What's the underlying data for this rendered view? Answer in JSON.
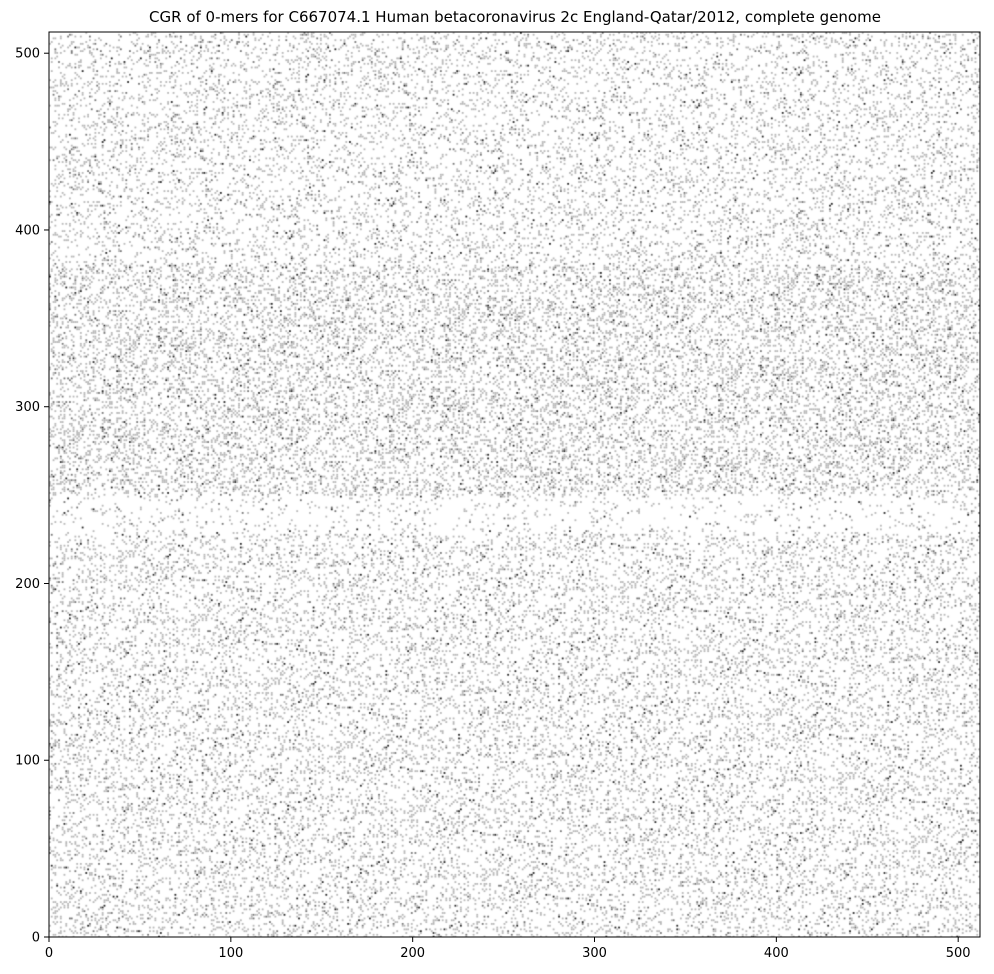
{
  "chart_data": {
    "type": "heatmap",
    "title": "CGR of 0-mers for C667074.1 Human betacoronavirus 2c England-Qatar/2012, complete genome",
    "xlabel": "",
    "ylabel": "",
    "xlim": [
      0,
      512
    ],
    "ylim": [
      0,
      512
    ],
    "x_ticks": [
      "0",
      "100",
      "200",
      "300",
      "400",
      "500"
    ],
    "y_ticks": [
      "0",
      "100",
      "200",
      "300",
      "400",
      "500"
    ],
    "grid": false,
    "legend": "none",
    "colormap": "gray_r",
    "background_color": "#ffffff",
    "point_color": "#000000"
  }
}
